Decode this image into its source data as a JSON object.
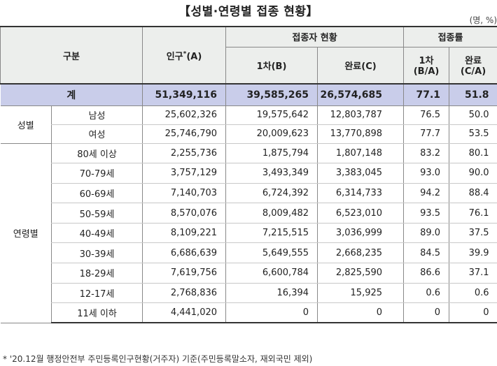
{
  "title": "【성별·연령별 접종 현황】",
  "unit": "(명, %)",
  "headers": {
    "category": "구분",
    "population": "인구",
    "population_mark": "*",
    "population_suffix": "(A)",
    "vaccinated": "접종자 현황",
    "first": "1차(B)",
    "complete": "완료(C)",
    "rate": "접종률",
    "rate_first_l1": "1차",
    "rate_first_l2": "(B/A)",
    "rate_complete_l1": "완료",
    "rate_complete_l2": "(C/A)"
  },
  "total": {
    "label": "계",
    "population": "51,349,116",
    "first": "39,585,265",
    "complete": "26,574,685",
    "rate_first": "77.1",
    "rate_complete": "51.8"
  },
  "gender": {
    "label": "성별",
    "rows": [
      {
        "label": "남성",
        "population": "25,602,326",
        "first": "19,575,642",
        "complete": "12,803,787",
        "rate_first": "76.5",
        "rate_complete": "50.0"
      },
      {
        "label": "여성",
        "population": "25,746,790",
        "first": "20,009,623",
        "complete": "13,770,898",
        "rate_first": "77.7",
        "rate_complete": "53.5"
      }
    ]
  },
  "age": {
    "label": "연령별",
    "rows": [
      {
        "label": "80세 이상",
        "population": "2,255,736",
        "first": "1,875,794",
        "complete": "1,807,148",
        "rate_first": "83.2",
        "rate_complete": "80.1"
      },
      {
        "label": "70-79세",
        "population": "3,757,129",
        "first": "3,493,349",
        "complete": "3,383,045",
        "rate_first": "93.0",
        "rate_complete": "90.0"
      },
      {
        "label": "60-69세",
        "population": "7,140,703",
        "first": "6,724,392",
        "complete": "6,314,733",
        "rate_first": "94.2",
        "rate_complete": "88.4"
      },
      {
        "label": "50-59세",
        "population": "8,570,076",
        "first": "8,009,482",
        "complete": "6,523,010",
        "rate_first": "93.5",
        "rate_complete": "76.1"
      },
      {
        "label": "40-49세",
        "population": "8,109,221",
        "first": "7,215,515",
        "complete": "3,036,999",
        "rate_first": "89.0",
        "rate_complete": "37.5"
      },
      {
        "label": "30-39세",
        "population": "6,686,639",
        "first": "5,649,555",
        "complete": "2,668,235",
        "rate_first": "84.5",
        "rate_complete": "39.9"
      },
      {
        "label": "18-29세",
        "population": "7,619,756",
        "first": "6,600,784",
        "complete": "2,825,590",
        "rate_first": "86.6",
        "rate_complete": "37.1"
      },
      {
        "label": "12-17세",
        "population": "2,768,836",
        "first": "16,394",
        "complete": "15,925",
        "rate_first": "0.6",
        "rate_complete": "0.6"
      },
      {
        "label": "11세 이하",
        "population": "4,441,020",
        "first": "0",
        "complete": "0",
        "rate_first": "0",
        "rate_complete": "0"
      }
    ]
  },
  "footnote": "* '20.12월 행정안전부 주민등록인구현황(거주자) 기준(주민등록말소자, 재외국민 제외)"
}
